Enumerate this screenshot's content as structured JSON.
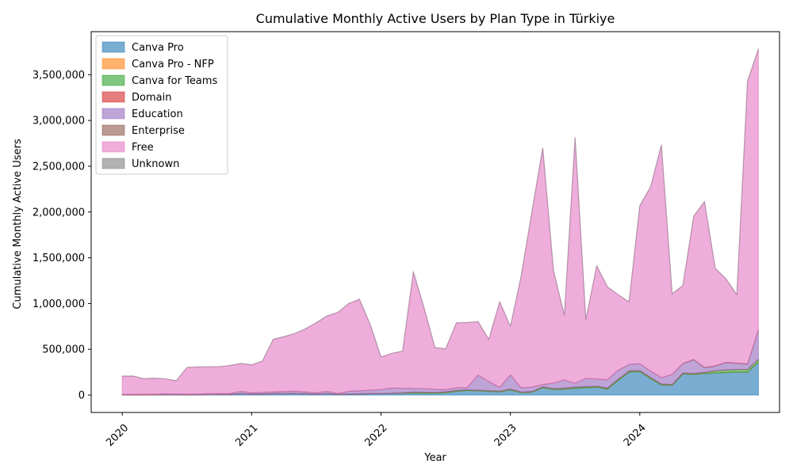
{
  "chart_data": {
    "type": "area",
    "stacked": true,
    "title": "Cumulative Monthly Active Users by Plan Type in Türkiye",
    "xlabel": "Year",
    "ylabel": "Cumulative Monthly Active Users",
    "x_tick_labels": [
      "2020",
      "2021",
      "2022",
      "2023",
      "2024"
    ],
    "y_tick_labels": [
      "0",
      "500,000",
      "1,000,000",
      "1,500,000",
      "2,000,000",
      "2,500,000",
      "3,000,000",
      "3,500,000"
    ],
    "ylim": [
      -190000,
      3970000
    ],
    "xlim": [
      2019.76,
      2025.08
    ],
    "legend_position": "top-left",
    "grid": false,
    "x": [
      2020.0,
      2020.083,
      2020.167,
      2020.25,
      2020.333,
      2020.417,
      2020.5,
      2020.583,
      2020.667,
      2020.75,
      2020.833,
      2020.917,
      2021.0,
      2021.083,
      2021.167,
      2021.25,
      2021.333,
      2021.417,
      2021.5,
      2021.583,
      2021.667,
      2021.75,
      2021.833,
      2021.917,
      2022.0,
      2022.083,
      2022.167,
      2022.25,
      2022.333,
      2022.417,
      2022.5,
      2022.583,
      2022.667,
      2022.75,
      2022.833,
      2022.917,
      2023.0,
      2023.083,
      2023.167,
      2023.25,
      2023.333,
      2023.417,
      2023.5,
      2023.583,
      2023.667,
      2023.75,
      2023.833,
      2023.917,
      2024.0,
      2024.083,
      2024.167,
      2024.25,
      2024.333,
      2024.417,
      2024.5,
      2024.583,
      2024.667,
      2024.75,
      2024.833,
      2024.917
    ],
    "series": [
      {
        "name": "Canva Pro",
        "color": "#1f77b4",
        "values": [
          2000,
          2000,
          3000,
          3000,
          5000,
          4000,
          3000,
          4000,
          5000,
          6000,
          7000,
          15000,
          10000,
          12000,
          14000,
          16000,
          18000,
          14000,
          10000,
          15000,
          8000,
          10000,
          12000,
          14000,
          15000,
          18000,
          20000,
          22000,
          20000,
          18000,
          25000,
          40000,
          50000,
          45000,
          40000,
          35000,
          55000,
          25000,
          30000,
          80000,
          60000,
          65000,
          75000,
          80000,
          85000,
          65000,
          160000,
          250000,
          255000,
          180000,
          110000,
          105000,
          230000,
          225000,
          235000,
          240000,
          245000,
          250000,
          250000,
          360000
        ]
      },
      {
        "name": "Canva Pro - NFP",
        "color": "#ff7f0e",
        "values": [
          0,
          0,
          0,
          0,
          0,
          0,
          0,
          0,
          0,
          0,
          0,
          0,
          0,
          0,
          0,
          0,
          0,
          0,
          0,
          0,
          0,
          0,
          0,
          0,
          0,
          0,
          0,
          0,
          0,
          0,
          0,
          0,
          0,
          0,
          0,
          0,
          0,
          0,
          0,
          0,
          0,
          0,
          0,
          0,
          0,
          0,
          0,
          1000,
          1000,
          1000,
          1000,
          1000,
          1000,
          1000,
          1000,
          1000,
          1000,
          1000,
          1000,
          1000
        ]
      },
      {
        "name": "Canva for Teams",
        "color": "#2ca02c",
        "values": [
          0,
          0,
          0,
          0,
          0,
          0,
          0,
          0,
          0,
          0,
          0,
          0,
          0,
          0,
          0,
          0,
          0,
          0,
          0,
          0,
          0,
          0,
          0,
          0,
          0,
          3000,
          4000,
          10000,
          10000,
          10000,
          10000,
          10000,
          8000,
          8000,
          8000,
          8000,
          10000,
          8000,
          8000,
          10000,
          10000,
          10000,
          12000,
          12000,
          12000,
          12000,
          12000,
          12000,
          12000,
          12000,
          10000,
          10000,
          10000,
          10000,
          12000,
          25000,
          28000,
          30000,
          30000,
          30000
        ]
      },
      {
        "name": "Domain",
        "color": "#d62728",
        "values": [
          0,
          0,
          0,
          0,
          0,
          0,
          0,
          0,
          0,
          0,
          0,
          0,
          0,
          0,
          0,
          0,
          0,
          0,
          0,
          0,
          0,
          0,
          0,
          0,
          0,
          0,
          0,
          0,
          0,
          0,
          0,
          0,
          0,
          0,
          0,
          0,
          0,
          0,
          0,
          0,
          0,
          0,
          0,
          0,
          0,
          0,
          0,
          0,
          0,
          0,
          0,
          0,
          0,
          0,
          0,
          0,
          0,
          0,
          0,
          0
        ]
      },
      {
        "name": "Education",
        "color": "#9467bd",
        "values": [
          5000,
          6000,
          6000,
          6000,
          8000,
          7000,
          8000,
          8000,
          9000,
          10000,
          11000,
          25000,
          15000,
          18000,
          20000,
          22000,
          24000,
          20000,
          15000,
          25000,
          10000,
          30000,
          35000,
          40000,
          45000,
          55000,
          50000,
          40000,
          40000,
          35000,
          25000,
          30000,
          25000,
          165000,
          100000,
          40000,
          155000,
          45000,
          50000,
          25000,
          60000,
          90000,
          40000,
          90000,
          80000,
          90000,
          100000,
          70000,
          75000,
          70000,
          70000,
          110000,
          100000,
          150000,
          50000,
          50000,
          80000,
          65000,
          55000,
          320000
        ]
      },
      {
        "name": "Enterprise",
        "color": "#8c564b",
        "values": [
          0,
          0,
          0,
          0,
          0,
          0,
          0,
          0,
          0,
          0,
          0,
          0,
          0,
          0,
          0,
          0,
          0,
          0,
          0,
          0,
          0,
          0,
          0,
          0,
          0,
          0,
          0,
          0,
          0,
          0,
          0,
          0,
          0,
          0,
          0,
          0,
          0,
          0,
          0,
          0,
          0,
          0,
          0,
          0,
          0,
          0,
          0,
          0,
          0,
          0,
          0,
          0,
          5000,
          5000,
          5000,
          5000,
          5000,
          5000,
          5000,
          5000
        ]
      },
      {
        "name": "Free",
        "color": "#e377c2",
        "values": [
          200000,
          200000,
          170000,
          175000,
          165000,
          145000,
          290000,
          295000,
          295000,
          295000,
          305000,
          305000,
          305000,
          340000,
          575000,
          600000,
          630000,
          690000,
          765000,
          825000,
          885000,
          960000,
          1000000,
          715000,
          355000,
          380000,
          405000,
          1275000,
          880000,
          455000,
          445000,
          710000,
          710000,
          585000,
          460000,
          935000,
          530000,
          1220000,
          1920000,
          2585000,
          1230000,
          705000,
          2685000,
          640000,
          1235000,
          1015000,
          825000,
          685000,
          1725000,
          2010000,
          2540000,
          880000,
          850000,
          1565000,
          1810000,
          1065000,
          910000,
          745000,
          3090000,
          3065000
        ]
      },
      {
        "name": "Unknown",
        "color": "#7f7f7f",
        "values": [
          0,
          0,
          0,
          0,
          0,
          0,
          0,
          0,
          0,
          0,
          0,
          0,
          0,
          0,
          0,
          0,
          0,
          0,
          0,
          0,
          0,
          0,
          0,
          0,
          0,
          0,
          0,
          0,
          0,
          0,
          0,
          0,
          0,
          0,
          0,
          0,
          0,
          0,
          0,
          0,
          0,
          0,
          0,
          0,
          0,
          0,
          0,
          0,
          0,
          0,
          0,
          0,
          0,
          0,
          0,
          0,
          0,
          0,
          0,
          0
        ]
      }
    ]
  }
}
